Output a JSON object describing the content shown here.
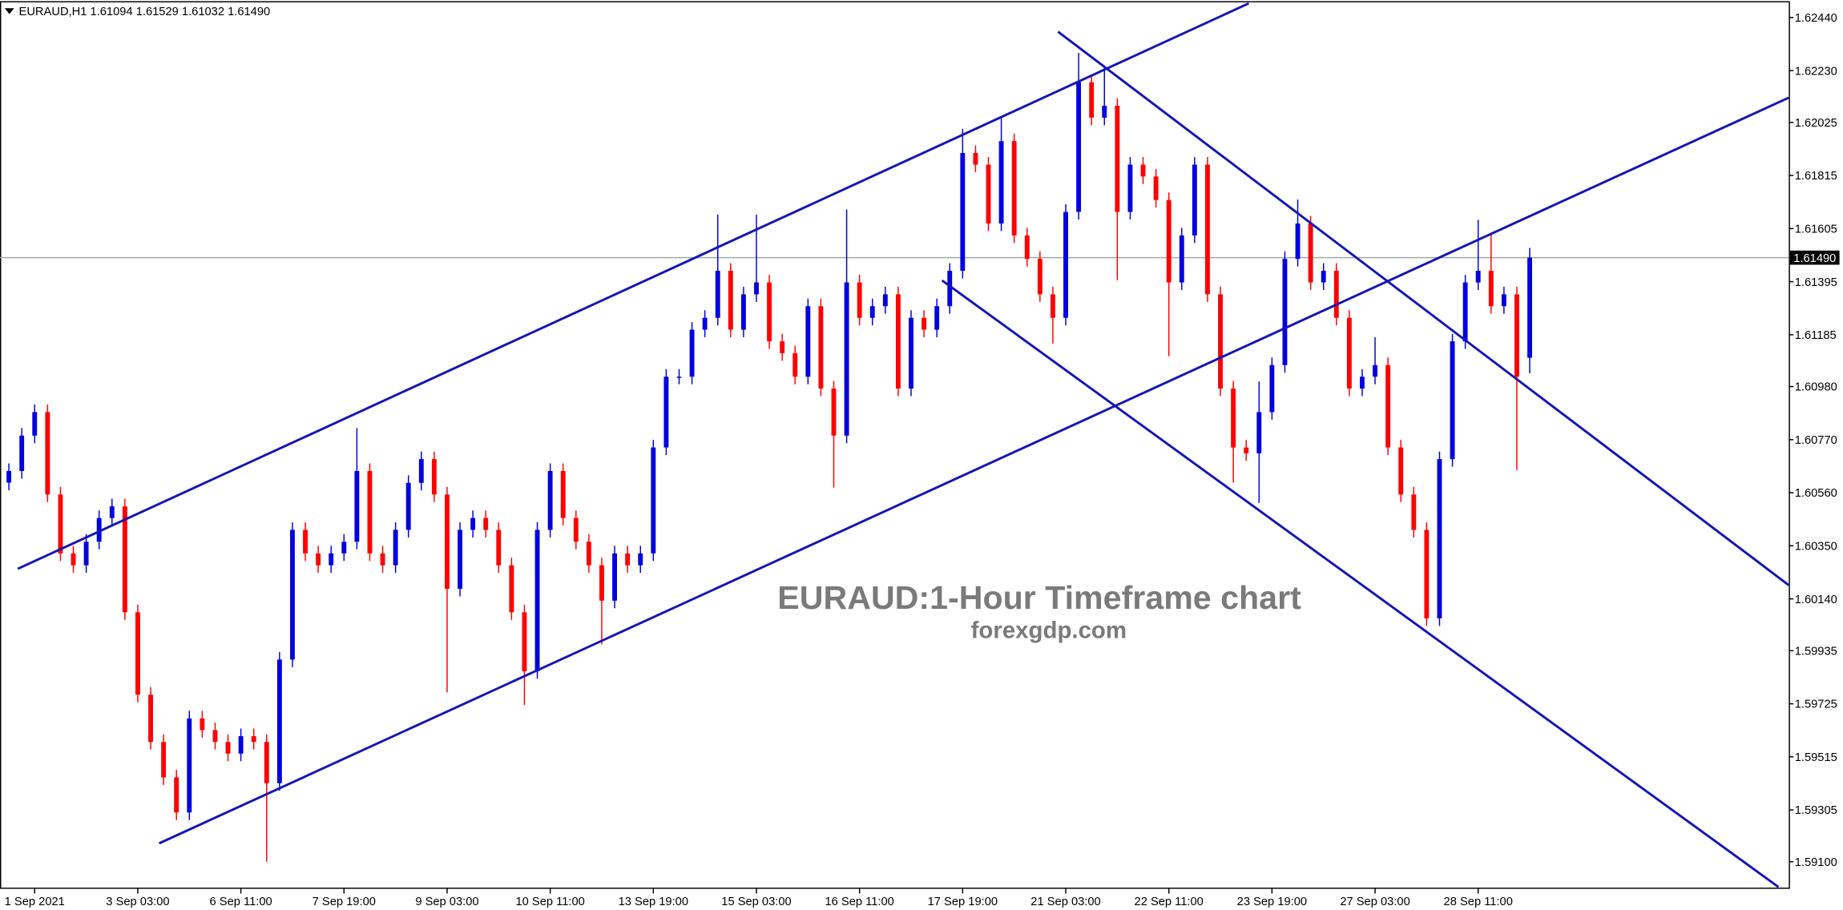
{
  "chart_data": {
    "type": "candlestick",
    "header": "EURAUD,H1  1.61094 1.61529 1.61032 1.61490",
    "watermark_title": "EURAUD:1-Hour Timeframe chart",
    "watermark_site": "forexgdp.com",
    "categories": [
      null,
      null,
      "1 Sep 2021",
      null,
      null,
      null,
      null,
      null,
      null,
      null,
      "3 Sep 03:00",
      null,
      null,
      null,
      null,
      null,
      null,
      null,
      "6 Sep 11:00",
      null,
      null,
      null,
      null,
      null,
      null,
      null,
      "7 Sep 19:00",
      null,
      null,
      null,
      null,
      null,
      null,
      null,
      "9 Sep 03:00",
      null,
      null,
      null,
      null,
      null,
      null,
      null,
      "10 Sep 11:00",
      null,
      null,
      null,
      null,
      null,
      null,
      null,
      "13 Sep 19:00",
      null,
      null,
      null,
      null,
      null,
      null,
      null,
      "15 Sep 03:00",
      null,
      null,
      null,
      null,
      null,
      null,
      null,
      "16 Sep 11:00",
      null,
      null,
      null,
      null,
      null,
      null,
      null,
      "17 Sep 19:00",
      null,
      null,
      null,
      null,
      null,
      null,
      null,
      "21 Sep 03:00",
      null,
      null,
      null,
      null,
      null,
      null,
      null,
      "22 Sep 11:00",
      null,
      null,
      null,
      null,
      null,
      null,
      null,
      "23 Sep 19:00",
      null,
      null,
      null,
      null,
      null,
      null,
      null,
      "27 Sep 03:00",
      null,
      null,
      null,
      null,
      null,
      null,
      null,
      "28 Sep 11:00",
      null,
      null,
      null,
      null
    ],
    "open": [
      1.606,
      1.60646,
      1.60786,
      1.60879,
      1.60553,
      1.6032,
      1.60273,
      1.60366,
      1.6046,
      1.60506,
      1.60087,
      1.59761,
      1.59574,
      1.59434,
      1.59295,
      1.59667,
      1.59621,
      1.59574,
      1.59528,
      1.59597,
      1.59574,
      1.59411,
      1.599,
      1.60413,
      1.6032,
      1.60273,
      1.6032,
      1.60366,
      1.60646,
      1.6032,
      1.60273,
      1.60413,
      1.60599,
      1.60693,
      1.60553,
      1.6018,
      1.60413,
      1.6046,
      1.60413,
      1.60273,
      1.60087,
      1.59854,
      1.60413,
      1.60646,
      1.6046,
      1.60366,
      1.60273,
      1.60133,
      1.6032,
      1.60273,
      1.6032,
      1.60739,
      1.61019,
      1.61019,
      1.61205,
      1.61252,
      1.61438,
      1.61205,
      1.61345,
      1.61392,
      1.61159,
      1.61112,
      1.61019,
      1.61298,
      1.60972,
      1.60786,
      1.61392,
      1.61252,
      1.61298,
      1.61345,
      1.60972,
      1.61252,
      1.61205,
      1.61298,
      1.61438,
      1.61904,
      1.61858,
      1.61625,
      1.61951,
      1.61578,
      1.61485,
      1.61345,
      1.61252,
      1.61671,
      1.62184,
      1.62044,
      1.62091,
      1.61671,
      1.61858,
      1.61811,
      1.61718,
      1.61392,
      1.61578,
      1.61858,
      1.61345,
      1.60972,
      1.60739,
      1.60716,
      1.60879,
      1.61065,
      1.61485,
      1.61625,
      1.61392,
      1.61438,
      1.61252,
      1.60972,
      1.61019,
      1.61065,
      1.60739,
      1.60553,
      1.60413,
      1.60063,
      1.60693,
      1.61159,
      1.61392,
      1.61438,
      1.61298,
      1.61345,
      1.61094
    ],
    "high": [
      1.60676,
      1.60816,
      1.60909,
      1.60909,
      1.60583,
      1.6035,
      1.60396,
      1.6049,
      1.60536,
      1.60536,
      1.60117,
      1.59791,
      1.59604,
      1.59464,
      1.59697,
      1.59697,
      1.59651,
      1.59604,
      1.59627,
      1.59627,
      1.59604,
      1.5993,
      1.60443,
      1.60443,
      1.6035,
      1.6035,
      1.60396,
      1.60816,
      1.60676,
      1.6035,
      1.60443,
      1.60629,
      1.60723,
      1.60723,
      1.60583,
      1.60443,
      1.6049,
      1.6049,
      1.60443,
      1.60303,
      1.60117,
      1.60443,
      1.60676,
      1.60676,
      1.6049,
      1.60396,
      1.60303,
      1.6035,
      1.6035,
      1.6035,
      1.60769,
      1.61049,
      1.61049,
      1.61235,
      1.61282,
      1.6166,
      1.61468,
      1.61375,
      1.6166,
      1.61422,
      1.61189,
      1.61142,
      1.61328,
      1.61328,
      1.61002,
      1.6168,
      1.61422,
      1.61328,
      1.61375,
      1.61375,
      1.61282,
      1.61282,
      1.61328,
      1.61468,
      1.62,
      1.61934,
      1.61888,
      1.6205,
      1.61981,
      1.61608,
      1.61515,
      1.61375,
      1.61701,
      1.623,
      1.62214,
      1.6225,
      1.62121,
      1.61888,
      1.61888,
      1.61841,
      1.61748,
      1.61608,
      1.61888,
      1.61888,
      1.61375,
      1.61002,
      1.60769,
      1.61,
      1.61095,
      1.61515,
      1.6172,
      1.61655,
      1.61468,
      1.61468,
      1.61282,
      1.61049,
      1.61175,
      1.61095,
      1.60769,
      1.60583,
      1.60443,
      1.60723,
      1.61189,
      1.61422,
      1.6164,
      1.6158,
      1.61375,
      1.61375,
      1.61529
    ],
    "low": [
      1.6057,
      1.60616,
      1.60756,
      1.60523,
      1.6029,
      1.60243,
      1.60243,
      1.60336,
      1.6043,
      1.60057,
      1.59731,
      1.59544,
      1.59404,
      1.59265,
      1.59265,
      1.59591,
      1.59544,
      1.59498,
      1.59498,
      1.59544,
      1.591,
      1.59381,
      1.5987,
      1.6029,
      1.60243,
      1.60243,
      1.6029,
      1.60336,
      1.6029,
      1.60243,
      1.60243,
      1.60383,
      1.60569,
      1.60523,
      1.5977,
      1.6015,
      1.60383,
      1.60383,
      1.60243,
      1.60057,
      1.5972,
      1.59824,
      1.60383,
      1.6043,
      1.60336,
      1.60243,
      1.5996,
      1.60103,
      1.60243,
      1.60243,
      1.6029,
      1.60709,
      1.60989,
      1.60989,
      1.61175,
      1.61222,
      1.61175,
      1.61175,
      1.61315,
      1.61129,
      1.61082,
      1.60989,
      1.60989,
      1.60942,
      1.6058,
      1.60756,
      1.61222,
      1.61222,
      1.61268,
      1.60942,
      1.60942,
      1.61175,
      1.61175,
      1.61268,
      1.61408,
      1.61828,
      1.61595,
      1.61595,
      1.61548,
      1.61455,
      1.61315,
      1.6115,
      1.61222,
      1.61641,
      1.62014,
      1.62014,
      1.614,
      1.61641,
      1.61781,
      1.61688,
      1.611,
      1.61362,
      1.61548,
      1.61315,
      1.60942,
      1.606,
      1.60686,
      1.6052,
      1.60849,
      1.61035,
      1.61455,
      1.61362,
      1.61362,
      1.61222,
      1.60942,
      1.60942,
      1.60989,
      1.60709,
      1.60523,
      1.60383,
      1.60033,
      1.60033,
      1.60663,
      1.61129,
      1.61362,
      1.61268,
      1.61268,
      1.6065,
      1.61032
    ],
    "close": [
      1.60646,
      1.60786,
      1.60879,
      1.60553,
      1.6032,
      1.60273,
      1.60366,
      1.6046,
      1.60506,
      1.60087,
      1.59761,
      1.59574,
      1.59434,
      1.59295,
      1.59667,
      1.59621,
      1.59574,
      1.59528,
      1.59597,
      1.59574,
      1.59411,
      1.599,
      1.60413,
      1.6032,
      1.60273,
      1.6032,
      1.60366,
      1.60646,
      1.6032,
      1.60273,
      1.60413,
      1.60599,
      1.60693,
      1.60553,
      1.6018,
      1.60413,
      1.6046,
      1.60413,
      1.60273,
      1.60087,
      1.59854,
      1.60413,
      1.60646,
      1.6046,
      1.60366,
      1.60273,
      1.60133,
      1.6032,
      1.60273,
      1.6032,
      1.60739,
      1.61019,
      1.61019,
      1.61205,
      1.61252,
      1.61438,
      1.61205,
      1.61345,
      1.61392,
      1.61159,
      1.61112,
      1.61019,
      1.61298,
      1.60972,
      1.60786,
      1.61392,
      1.61252,
      1.61298,
      1.61345,
      1.60972,
      1.61252,
      1.61205,
      1.61298,
      1.61438,
      1.61904,
      1.61858,
      1.61625,
      1.61951,
      1.61578,
      1.61485,
      1.61345,
      1.61252,
      1.61671,
      1.62184,
      1.62044,
      1.62091,
      1.61671,
      1.61858,
      1.61811,
      1.61718,
      1.61392,
      1.61578,
      1.61858,
      1.61345,
      1.60972,
      1.60739,
      1.60716,
      1.60879,
      1.61065,
      1.61485,
      1.61625,
      1.61392,
      1.61438,
      1.61252,
      1.60972,
      1.61019,
      1.61065,
      1.60739,
      1.60553,
      1.60413,
      1.60063,
      1.60693,
      1.61159,
      1.61392,
      1.61438,
      1.61298,
      1.61345,
      1.61019,
      1.6149
    ],
    "up_color": "#0000e0",
    "down_color": "#ff0000",
    "trendline_color": "#1414b8",
    "trendlines": [
      {
        "x": [
          0.69,
          96.2
        ],
        "y": [
          1.60259,
          1.62496
        ]
      },
      {
        "x": [
          11.66,
          138.1
        ],
        "y": [
          1.59173,
          1.62123
        ]
      },
      {
        "x": [
          81.4,
          138.1
        ],
        "y": [
          1.62384,
          1.60194
        ]
      },
      {
        "x": [
          72.4,
          137.3
        ],
        "y": [
          1.614,
          1.59
        ]
      }
    ],
    "last_price": {
      "value": 1.6149,
      "label": "1.61490"
    },
    "xlim": [
      -0.69,
      138.1
    ],
    "ylim": [
      1.58993,
      1.625
    ],
    "yticks": [
      {
        "value": 1.6244,
        "label": "1.62440"
      },
      {
        "value": 1.6223,
        "label": "1.62230"
      },
      {
        "value": 1.62025,
        "label": "1.62025"
      },
      {
        "value": 1.61815,
        "label": "1.61815"
      },
      {
        "value": 1.61605,
        "label": "1.61605"
      },
      {
        "value": 1.61395,
        "label": "1.61395"
      },
      {
        "value": 1.61185,
        "label": "1.61185"
      },
      {
        "value": 1.6098,
        "label": "1.60980"
      },
      {
        "value": 1.6077,
        "label": "1.60770"
      },
      {
        "value": 1.6056,
        "label": "1.60560"
      },
      {
        "value": 1.6035,
        "label": "1.60350"
      },
      {
        "value": 1.6014,
        "label": "1.60140"
      },
      {
        "value": 1.59935,
        "label": "1.59935"
      },
      {
        "value": 1.59725,
        "label": "1.59725"
      },
      {
        "value": 1.59515,
        "label": "1.59515"
      },
      {
        "value": 1.59305,
        "label": "1.59305"
      },
      {
        "value": 1.591,
        "label": "1.59100"
      }
    ]
  }
}
